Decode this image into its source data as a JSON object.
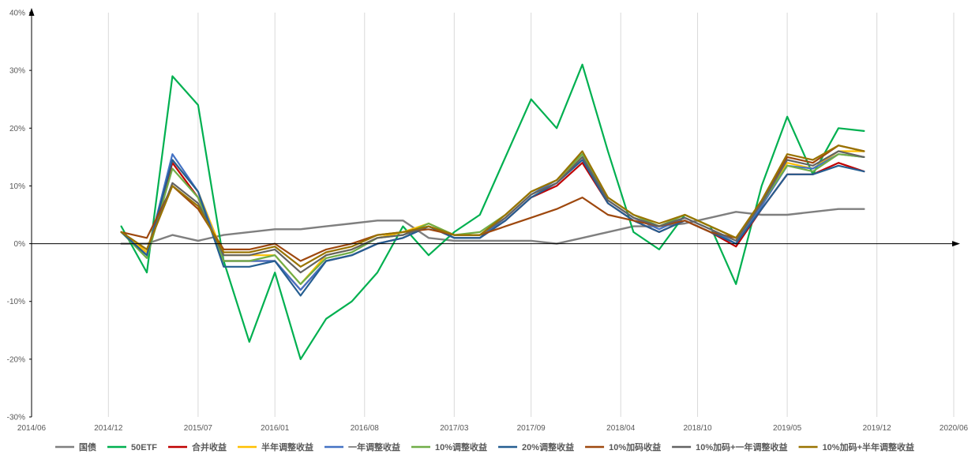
{
  "chart_data": {
    "type": "line",
    "title": "",
    "xlabel": "",
    "ylabel": "",
    "x_ticks": [
      "2014/06",
      "2014/12",
      "2015/07",
      "2016/01",
      "2016/08",
      "2017/03",
      "2017/09",
      "2018/04",
      "2018/10",
      "2019/05",
      "2019/12",
      "2020/06"
    ],
    "y_ticks": [
      "-30%",
      "-20%",
      "-10%",
      "0%",
      "10%",
      "20%",
      "30%",
      "40%"
    ],
    "ylim": [
      -30,
      40
    ],
    "grid": "vertical",
    "legend_position": "bottom",
    "x_dates": [
      "2015/01",
      "2015/03",
      "2015/05",
      "2015/07",
      "2015/09",
      "2015/11",
      "2016/01",
      "2016/03",
      "2016/05",
      "2016/07",
      "2016/09",
      "2016/11",
      "2017/01",
      "2017/03",
      "2017/05",
      "2017/07",
      "2017/09",
      "2017/11",
      "2018/01",
      "2018/03",
      "2018/05",
      "2018/07",
      "2018/09",
      "2018/11",
      "2019/01",
      "2019/03",
      "2019/05",
      "2019/07",
      "2019/09",
      "2019/11"
    ],
    "series": [
      {
        "name": "国债",
        "color": "#7f7f7f",
        "width": 2.4,
        "values": [
          0,
          0,
          1.5,
          0.5,
          1.5,
          2,
          2.5,
          2.5,
          3,
          3.5,
          4,
          4,
          1,
          0.5,
          0.5,
          0.5,
          0.5,
          0,
          1,
          2,
          3,
          3,
          3.5,
          4.5,
          5.5,
          5,
          5,
          5.5,
          6,
          6
        ]
      },
      {
        "name": "50ETF",
        "color": "#00b050",
        "width": 2.2,
        "values": [
          3,
          -5,
          29,
          24,
          -3,
          -17,
          -5,
          -20,
          -13,
          -10,
          -5,
          3,
          -2,
          2,
          5,
          15,
          25,
          20,
          31,
          16,
          2,
          -1,
          5,
          3,
          -7,
          10,
          22,
          12,
          20,
          19.5
        ]
      },
      {
        "name": "合并收益",
        "color": "#c00000",
        "width": 2.2,
        "values": [
          2,
          -1.5,
          14,
          8,
          -3,
          -3,
          -3,
          -8,
          -3,
          -2,
          0,
          1,
          3,
          1,
          1,
          4,
          8,
          10,
          14,
          7,
          4,
          2,
          4,
          2,
          -0.5,
          6,
          12,
          12,
          14,
          12.5
        ]
      },
      {
        "name": "半年调整收益",
        "color": "#ffc000",
        "width": 2.2,
        "values": [
          2,
          -1.5,
          14.5,
          9,
          -2,
          -2,
          -2,
          -7,
          -2,
          -1,
          1,
          2,
          3.5,
          1.5,
          1.5,
          5,
          9,
          11,
          15,
          8,
          5,
          3,
          5,
          3,
          1,
          7,
          14,
          13,
          16,
          16
        ]
      },
      {
        "name": "一年调整收益",
        "color": "#4472c4",
        "width": 2.2,
        "values": [
          2,
          -2,
          15.5,
          9,
          -3,
          -3,
          -3,
          -8,
          -3,
          -2,
          0,
          1,
          3,
          1,
          1,
          4.5,
          8.5,
          11,
          15.5,
          7.5,
          4.5,
          2.5,
          4.5,
          2.5,
          0,
          6.5,
          13.5,
          13,
          15.5,
          15
        ]
      },
      {
        "name": "10%调整收益",
        "color": "#70ad47",
        "width": 2.2,
        "values": [
          2,
          -2.5,
          13,
          8,
          -3,
          -3,
          -2,
          -7,
          -2.5,
          -1.5,
          1,
          1.5,
          3.5,
          1.5,
          2,
          5,
          9,
          11,
          15.5,
          8,
          5,
          3,
          5,
          3,
          1,
          7,
          13.5,
          12.5,
          15.5,
          15
        ]
      },
      {
        "name": "20%调整收益",
        "color": "#255e91",
        "width": 2.2,
        "values": [
          2,
          -2,
          14.5,
          9,
          -4,
          -4,
          -3,
          -9,
          -3,
          -2,
          0,
          1,
          3,
          1,
          1,
          4,
          8,
          10.5,
          14.5,
          7,
          4,
          2,
          4,
          2,
          0,
          6,
          12,
          12,
          13.5,
          12.5
        ]
      },
      {
        "name": "10%加码收益",
        "color": "#9e480e",
        "width": 2.2,
        "values": [
          2,
          1,
          10,
          6,
          -1,
          -1,
          0,
          -3,
          -1,
          0,
          1.5,
          2,
          2.5,
          1.5,
          1.5,
          3,
          4.5,
          6,
          8,
          5,
          4,
          3,
          4,
          2,
          1,
          7,
          15,
          14,
          17,
          16
        ]
      },
      {
        "name": "10%加码+一年调整收益",
        "color": "#636363",
        "width": 2.2,
        "values": [
          2,
          -1,
          10.5,
          7,
          -2,
          -2,
          -1,
          -5,
          -2,
          -1,
          1,
          1.5,
          3,
          1.5,
          1.5,
          4.5,
          8.5,
          10.5,
          15,
          7.5,
          4.5,
          3,
          4.5,
          2.5,
          0.5,
          7,
          14.5,
          13.5,
          16,
          15
        ]
      },
      {
        "name": "10%加码+半年调整收益",
        "color": "#997300",
        "width": 2.2,
        "values": [
          2,
          -1,
          10,
          6.5,
          -1.5,
          -1.5,
          -0.5,
          -4,
          -1.5,
          -0.5,
          1.5,
          2,
          3,
          1.5,
          1.5,
          5,
          9,
          11,
          16,
          8,
          5,
          3.5,
          5,
          3,
          1,
          7.5,
          15.5,
          14.5,
          17,
          16
        ]
      }
    ]
  }
}
